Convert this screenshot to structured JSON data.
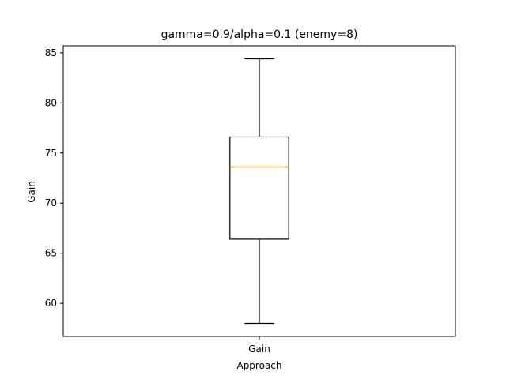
{
  "chart_data": {
    "type": "box",
    "title": "gamma=0.9/alpha=0.1 (enemy=8)",
    "xlabel": "Approach",
    "ylabel": "Gain",
    "categories": [
      "Gain"
    ],
    "boxes": [
      {
        "name": "Gain",
        "whisker_low": 58.0,
        "q1": 66.4,
        "median": 73.6,
        "q3": 76.6,
        "whisker_high": 84.4
      }
    ],
    "ylim": [
      56.7,
      85.7
    ],
    "yticks": [
      60,
      65,
      70,
      75,
      80,
      85
    ],
    "grid": false,
    "colors": {
      "box": "#000000",
      "median": "#ff7f0e"
    }
  }
}
